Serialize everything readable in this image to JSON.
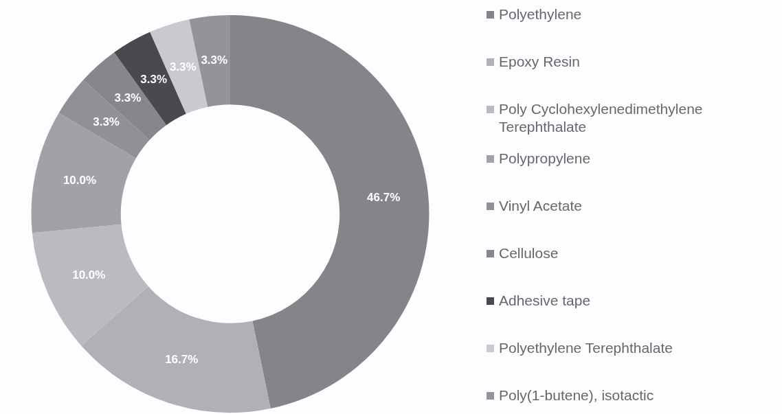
{
  "chart_data": {
    "type": "donut",
    "categories": [
      "Polyethylene",
      "Epoxy Resin",
      "Poly Cyclohexylenedimethylene Terephthalate",
      "Polypropylene",
      "Vinyl Acetate",
      "Cellulose",
      "Adhesive tape",
      "Polyethylene Terephthalate",
      "Poly(1-butene), isotactic"
    ],
    "values": [
      46.7,
      16.7,
      10.0,
      10.0,
      3.3,
      3.3,
      3.3,
      3.3,
      3.3
    ],
    "value_labels": [
      "46.7%",
      "16.7%",
      "10.0%",
      "10.0%",
      "3.3%",
      "3.3%",
      "3.3%",
      "3.3%",
      "3.3%"
    ],
    "colors": [
      "#858589",
      "#b2b0b6",
      "#bcbac0",
      "#a3a1a7",
      "#929096",
      "#88868c",
      "#4a494d",
      "#cbc9cf",
      "#959399"
    ],
    "legend": "right"
  }
}
